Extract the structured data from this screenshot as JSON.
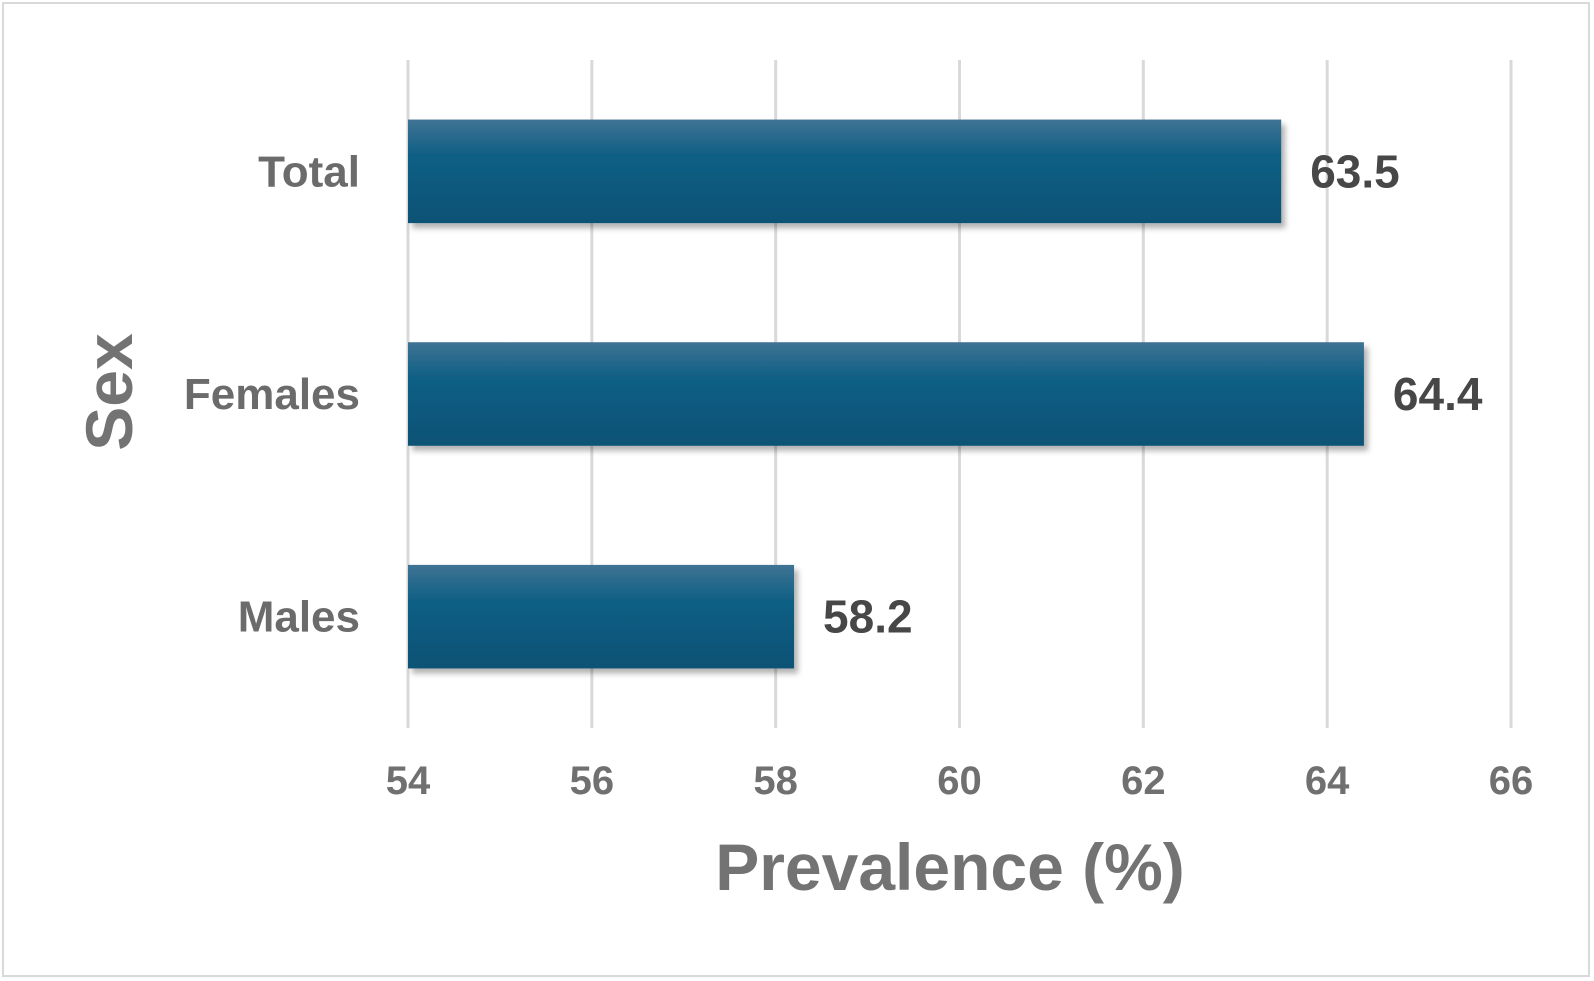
{
  "chart_data": {
    "type": "bar",
    "orientation": "horizontal",
    "categories": [
      "Total",
      "Females",
      "Males"
    ],
    "values": [
      63.5,
      64.4,
      58.2
    ],
    "data_labels": [
      "63.5",
      "64.4",
      "58.2"
    ],
    "xlabel": "Prevalence (%)",
    "ylabel": "Sex",
    "xlim": [
      54,
      66
    ],
    "xticks": [
      54,
      56,
      58,
      60,
      62,
      64,
      66
    ],
    "xtick_labels": [
      "54",
      "56",
      "58",
      "60",
      "62",
      "64",
      "66"
    ],
    "grid": "vertical",
    "legend": "none",
    "bar_color": "#0b5a7e"
  }
}
